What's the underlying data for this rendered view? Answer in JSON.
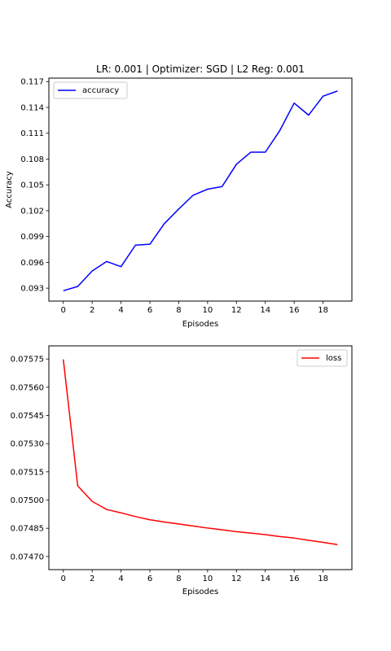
{
  "chart_data": [
    {
      "type": "line",
      "title": "LR: 0.001 | Optimizer: SGD | L2 Reg: 0.001",
      "xlabel": "Episodes",
      "ylabel": "Accuracy",
      "xlim": [
        -1,
        20
      ],
      "ylim": [
        0.0915,
        0.1174
      ],
      "xticks": [
        0,
        2,
        4,
        6,
        8,
        10,
        12,
        14,
        16,
        18
      ],
      "xtick_labels": [
        "0",
        "2",
        "4",
        "6",
        "8",
        "10",
        "12",
        "14",
        "16",
        "18"
      ],
      "yticks": [
        0.093,
        0.096,
        0.099,
        0.102,
        0.105,
        0.108,
        0.111,
        0.114,
        0.117
      ],
      "ytick_labels": [
        "0.093",
        "0.096",
        "0.099",
        "0.102",
        "0.105",
        "0.108",
        "0.111",
        "0.114",
        "0.117"
      ],
      "legend": "upper left",
      "grid": false,
      "series": [
        {
          "name": "accuracy",
          "color": "#0000ff",
          "x": [
            0,
            1,
            2,
            3,
            4,
            5,
            6,
            7,
            8,
            9,
            10,
            11,
            12,
            13,
            14,
            15,
            16,
            17,
            18,
            19
          ],
          "values": [
            0.0927,
            0.0932,
            0.095,
            0.0961,
            0.0955,
            0.098,
            0.0981,
            0.1005,
            0.1022,
            0.1038,
            0.1045,
            0.1048,
            0.1074,
            0.1088,
            0.1088,
            0.1113,
            0.1145,
            0.1131,
            0.1153,
            0.1159
          ]
        }
      ]
    },
    {
      "type": "line",
      "title": "",
      "xlabel": "Episodes",
      "ylabel": "",
      "xlim": [
        -1,
        20
      ],
      "ylim": [
        0.07463,
        0.07582
      ],
      "xticks": [
        0,
        2,
        4,
        6,
        8,
        10,
        12,
        14,
        16,
        18
      ],
      "xtick_labels": [
        "0",
        "2",
        "4",
        "6",
        "8",
        "10",
        "12",
        "14",
        "16",
        "18"
      ],
      "yticks": [
        0.0747,
        0.07485,
        0.075,
        0.07515,
        0.0753,
        0.07545,
        0.0756,
        0.07575
      ],
      "ytick_labels": [
        "0.07470",
        "0.07485",
        "0.07500",
        "0.07515",
        "0.07530",
        "0.07545",
        "0.07560",
        "0.07575"
      ],
      "legend": "upper right",
      "grid": false,
      "series": [
        {
          "name": "loss",
          "color": "#ff0000",
          "x": [
            0,
            1,
            2,
            3,
            4,
            5,
            6,
            7,
            8,
            9,
            10,
            11,
            12,
            13,
            14,
            15,
            16,
            17,
            18,
            19
          ],
          "values": [
            0.075748,
            0.075075,
            0.074993,
            0.07495,
            0.074932,
            0.074912,
            0.074895,
            0.074883,
            0.074873,
            0.074862,
            0.074851,
            0.074842,
            0.074832,
            0.074824,
            0.074816,
            0.074806,
            0.074798,
            0.074786,
            0.074775,
            0.074763
          ]
        }
      ]
    }
  ]
}
